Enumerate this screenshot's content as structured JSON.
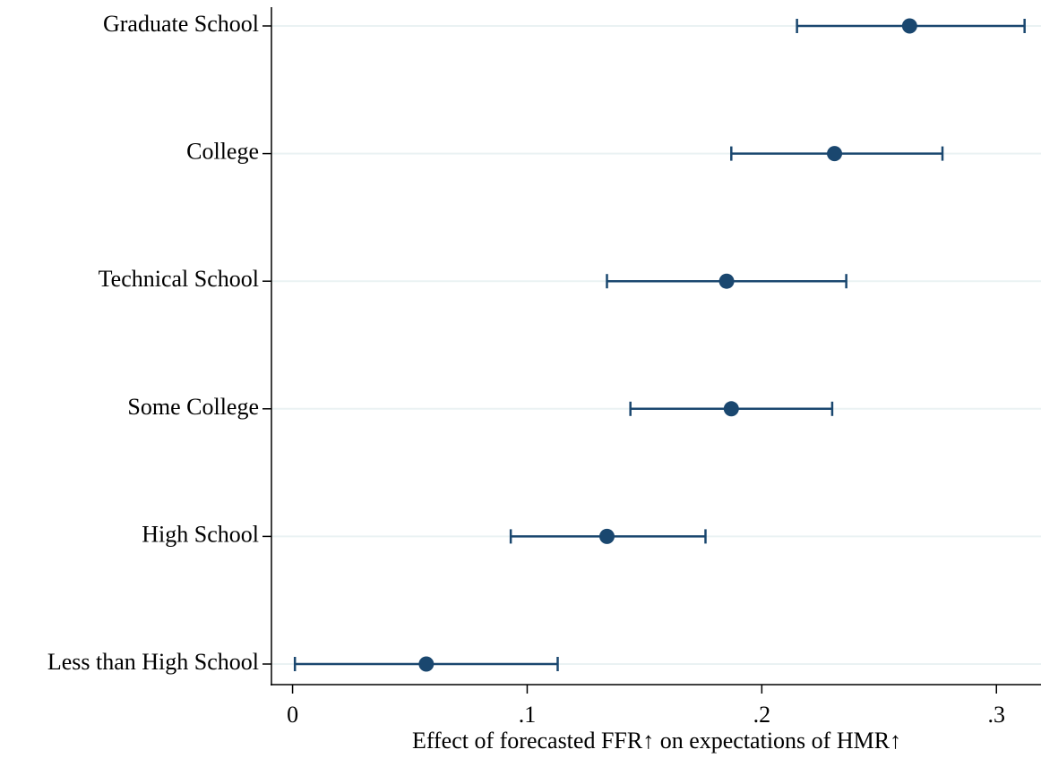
{
  "chart_data": {
    "type": "coefplot",
    "categories": [
      "Graduate School",
      "College",
      "Technical School",
      "Some College",
      "High School",
      "Less than High School"
    ],
    "values": [
      0.263,
      0.231,
      0.185,
      0.187,
      0.134,
      0.057
    ],
    "lower": [
      0.215,
      0.187,
      0.134,
      0.144,
      0.093,
      0.001
    ],
    "upper": [
      0.312,
      0.277,
      0.236,
      0.23,
      0.176,
      0.113
    ],
    "color": "#1a476f",
    "xlabel": "Effect of forecasted FFR↑ on expectations of HMR↑",
    "xlim": [
      -0.009,
      0.319
    ],
    "xticks": [
      0,
      {
        "value": 0.1,
        "label": ".1"
      },
      {
        "value": 0.2,
        "label": ".2"
      },
      {
        "value": 0.3,
        "label": ".3"
      }
    ],
    "grid": true,
    "grid_color": "#eaf2f3"
  }
}
